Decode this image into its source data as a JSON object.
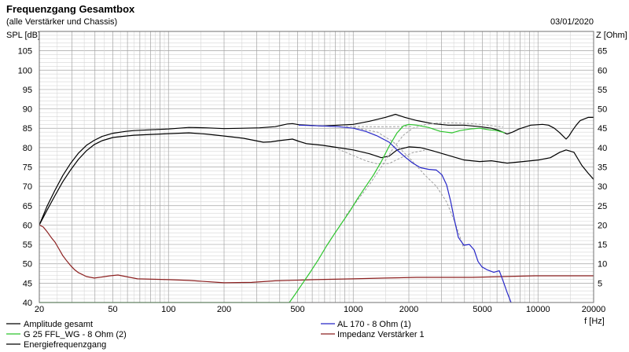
{
  "header": {
    "date": "03/01/2020"
  },
  "chart_data": {
    "type": "line",
    "title": "Frequenzgang Gesamtbox",
    "subtitle": "(alle Verstärker und Chassis)",
    "xlabel": "f [Hz]",
    "ylabel": "SPL [dB]",
    "y2label": "Z [Ohm]",
    "xscale": "log",
    "xlim": [
      20,
      20000
    ],
    "ylim": [
      40,
      110
    ],
    "y2lim": [
      0,
      70
    ],
    "xticks": [
      20,
      50,
      100,
      200,
      500,
      1000,
      2000,
      5000,
      10000,
      20000
    ],
    "yticks": [
      105,
      100,
      95,
      90,
      85,
      80,
      75,
      70,
      65,
      60,
      55,
      50,
      45,
      40
    ],
    "y2ticks": [
      65,
      60,
      55,
      50,
      45,
      40,
      35,
      30,
      25,
      20,
      15,
      10,
      5
    ],
    "grid": true,
    "legend": "bottom",
    "series": [
      {
        "name": "Amplitude gesamt",
        "color": "#000000",
        "axis": "left",
        "style": "solid",
        "points": [
          [
            20,
            60
          ],
          [
            22,
            64.8
          ],
          [
            24.3,
            69
          ],
          [
            26.8,
            72.8
          ],
          [
            29.6,
            76
          ],
          [
            32.6,
            78.6
          ],
          [
            36,
            80.6
          ],
          [
            39.7,
            81.9
          ],
          [
            43.8,
            82.9
          ],
          [
            50,
            83.7
          ],
          [
            58.8,
            84.2
          ],
          [
            65,
            84.4
          ],
          [
            80,
            84.6
          ],
          [
            100,
            84.8
          ],
          [
            129,
            85.2
          ],
          [
            160,
            85.1
          ],
          [
            200,
            84.9
          ],
          [
            255,
            85
          ],
          [
            311,
            85.1
          ],
          [
            378,
            85.4
          ],
          [
            440,
            86.1
          ],
          [
            469,
            86.2
          ],
          [
            510,
            85.9
          ],
          [
            560,
            85.8
          ],
          [
            681,
            85.6
          ],
          [
            828,
            85.8
          ],
          [
            1000,
            86
          ],
          [
            1225,
            86.8
          ],
          [
            1491,
            87.8
          ],
          [
            1693,
            88.6
          ],
          [
            1904,
            87.8
          ],
          [
            2206,
            87
          ],
          [
            2683,
            86.2
          ],
          [
            3264,
            85.8
          ],
          [
            3972,
            85.8
          ],
          [
            4832,
            85.4
          ],
          [
            5596,
            85
          ],
          [
            6100,
            84.5
          ],
          [
            6808,
            83.5
          ],
          [
            7300,
            84
          ],
          [
            7884,
            84.8
          ],
          [
            9130,
            85.8
          ],
          [
            10580,
            86
          ],
          [
            11400,
            85.8
          ],
          [
            12250,
            85
          ],
          [
            13120,
            83.8
          ],
          [
            13650,
            83
          ],
          [
            14190,
            82.2
          ],
          [
            14700,
            83
          ],
          [
            15350,
            84.4
          ],
          [
            16100,
            85.8
          ],
          [
            16930,
            87
          ],
          [
            18670,
            87.8
          ],
          [
            20000,
            87.8
          ]
        ]
      },
      {
        "name": "AL 170 - 8 Ohm (1)",
        "color": "#2626c8",
        "axis": "left",
        "style": "solid",
        "points": [
          [
            507,
            85.8
          ],
          [
            681,
            85.6
          ],
          [
            828,
            85.4
          ],
          [
            1000,
            85
          ],
          [
            1167,
            84.2
          ],
          [
            1351,
            83
          ],
          [
            1565,
            81.4
          ],
          [
            1727,
            79.4
          ],
          [
            1904,
            77.6
          ],
          [
            2100,
            76
          ],
          [
            2317,
            74.8
          ],
          [
            2555,
            74.4
          ],
          [
            2818,
            74.2
          ],
          [
            3018,
            73
          ],
          [
            3201,
            70.4
          ],
          [
            3362,
            66.3
          ],
          [
            3530,
            61.3
          ],
          [
            3708,
            56.8
          ],
          [
            3972,
            54.8
          ],
          [
            4254,
            55
          ],
          [
            4512,
            53.6
          ],
          [
            4738,
            50.6
          ],
          [
            4976,
            49.2
          ],
          [
            5328,
            48.4
          ],
          [
            5763,
            47.8
          ],
          [
            6173,
            48.2
          ],
          [
            6480,
            45.5
          ],
          [
            6808,
            42.6
          ],
          [
            7150,
            40
          ]
        ]
      },
      {
        "name": "G 25 FFL_WG - 8 Ohm (2)",
        "color": "#2cc42c",
        "axis": "left",
        "style": "solid",
        "points": [
          [
            20,
            40
          ],
          [
            451,
            40
          ],
          [
            483,
            42
          ],
          [
            533,
            45
          ],
          [
            588,
            48
          ],
          [
            648,
            51.1
          ],
          [
            715,
            54.5
          ],
          [
            788,
            57.6
          ],
          [
            869,
            60.6
          ],
          [
            959,
            63.6
          ],
          [
            1058,
            66.9
          ],
          [
            1167,
            69.9
          ],
          [
            1287,
            72.9
          ],
          [
            1419,
            76.4
          ],
          [
            1565,
            80.4
          ],
          [
            1727,
            83.8
          ],
          [
            1868,
            85.6
          ],
          [
            2000,
            86
          ],
          [
            2206,
            85.8
          ],
          [
            2555,
            85.2
          ],
          [
            2959,
            84.2
          ],
          [
            3428,
            83.8
          ],
          [
            3781,
            84.4
          ],
          [
            4296,
            84.8
          ],
          [
            4832,
            85
          ],
          [
            5434,
            84.6
          ],
          [
            5994,
            84.4
          ],
          [
            6610,
            83.8
          ]
        ]
      },
      {
        "name": "Impedanz Verstärker 1",
        "color": "#8c2020",
        "axis": "right",
        "style": "solid",
        "points": [
          [
            20,
            20
          ],
          [
            21,
            19.5
          ],
          [
            22.1,
            18.2
          ],
          [
            23.2,
            16.8
          ],
          [
            24.3,
            15.6
          ],
          [
            25.5,
            13.9
          ],
          [
            26.8,
            12.1
          ],
          [
            28.2,
            10.7
          ],
          [
            29.6,
            9.5
          ],
          [
            31,
            8.5
          ],
          [
            32.6,
            7.7
          ],
          [
            36,
            6.7
          ],
          [
            39.7,
            6.3
          ],
          [
            43.8,
            6.6
          ],
          [
            48.3,
            6.9
          ],
          [
            53.3,
            7.1
          ],
          [
            58.8,
            6.7
          ],
          [
            68,
            6.1
          ],
          [
            100,
            5.9
          ],
          [
            129,
            5.7
          ],
          [
            200,
            5.1
          ],
          [
            282,
            5.2
          ],
          [
            378,
            5.6
          ],
          [
            617,
            5.9
          ],
          [
            1000,
            6.1
          ],
          [
            1491,
            6.3
          ],
          [
            2206,
            6.5
          ],
          [
            4381,
            6.5
          ],
          [
            6480,
            6.7
          ],
          [
            9590,
            6.9
          ],
          [
            20000,
            6.9
          ]
        ]
      },
      {
        "name": "Energiefrequenzgang",
        "color": "#000000",
        "axis": "left",
        "style": "solid",
        "points": [
          [
            20,
            60
          ],
          [
            22,
            63.8
          ],
          [
            24.3,
            67.6
          ],
          [
            26.8,
            71.2
          ],
          [
            29.6,
            74.3
          ],
          [
            32.6,
            77
          ],
          [
            36,
            79.2
          ],
          [
            39.7,
            80.8
          ],
          [
            43.8,
            81.8
          ],
          [
            50,
            82.6
          ],
          [
            58.8,
            83
          ],
          [
            65,
            83.2
          ],
          [
            80,
            83.4
          ],
          [
            100,
            83.6
          ],
          [
            129,
            83.8
          ],
          [
            160,
            83.5
          ],
          [
            200,
            83
          ],
          [
            255,
            82.4
          ],
          [
            326,
            81.4
          ],
          [
            360,
            81.5
          ],
          [
            397,
            81.8
          ],
          [
            469,
            82.2
          ],
          [
            510,
            81.6
          ],
          [
            560,
            81
          ],
          [
            681,
            80.6
          ],
          [
            828,
            80
          ],
          [
            1000,
            79.4
          ],
          [
            1225,
            78.4
          ],
          [
            1419,
            77.4
          ],
          [
            1565,
            77.8
          ],
          [
            1727,
            79.4
          ],
          [
            2000,
            80.2
          ],
          [
            2317,
            80
          ],
          [
            2683,
            79.2
          ],
          [
            3264,
            78
          ],
          [
            3972,
            76.8
          ],
          [
            4832,
            76.4
          ],
          [
            5596,
            76.6
          ],
          [
            6808,
            76
          ],
          [
            8280,
            76.4
          ],
          [
            10070,
            76.8
          ],
          [
            11670,
            77.4
          ],
          [
            13120,
            78.8
          ],
          [
            14190,
            79.4
          ],
          [
            15660,
            78.8
          ],
          [
            17270,
            75.4
          ],
          [
            18670,
            73.4
          ],
          [
            20000,
            71.8
          ]
        ]
      },
      {
        "color": "#a0a0a0",
        "axis": "left",
        "style": "dashed",
        "points": [
          [
            1000,
            85.2
          ],
          [
            1351,
            84
          ],
          [
            1644,
            81.5
          ],
          [
            2000,
            77.5
          ],
          [
            2433,
            73
          ],
          [
            2818,
            70
          ],
          [
            3201,
            66
          ],
          [
            3530,
            61
          ],
          [
            3781,
            57
          ],
          [
            3972,
            53.8
          ]
        ]
      },
      {
        "color": "#a0a0a0",
        "axis": "left",
        "style": "dashed",
        "points": [
          [
            913,
            62.5
          ],
          [
            1058,
            66.5
          ],
          [
            1225,
            70.5
          ],
          [
            1419,
            75
          ],
          [
            1644,
            79.8
          ],
          [
            1868,
            83.2
          ],
          [
            2100,
            85
          ],
          [
            2433,
            85.9
          ],
          [
            2818,
            86.3
          ],
          [
            3428,
            86.4
          ],
          [
            4381,
            86.2
          ],
          [
            5328,
            85.8
          ],
          [
            6480,
            85.3
          ]
        ]
      },
      {
        "color": "#a0a0a0",
        "axis": "left",
        "style": "dashed",
        "points": [
          [
            828,
            79.6
          ],
          [
            1007,
            77.9
          ],
          [
            1167,
            76.6
          ],
          [
            1351,
            75.8
          ],
          [
            1565,
            75.9
          ],
          [
            1813,
            77.4
          ],
          [
            2100,
            78.7
          ],
          [
            2433,
            79.3
          ]
        ]
      },
      {
        "color": "#a0a0a0",
        "axis": "left",
        "style": "dashed",
        "points": [
          [
            913,
            85.5
          ],
          [
            1225,
            85.4
          ],
          [
            1644,
            85.4
          ],
          [
            2100,
            85.5
          ]
        ]
      }
    ]
  }
}
